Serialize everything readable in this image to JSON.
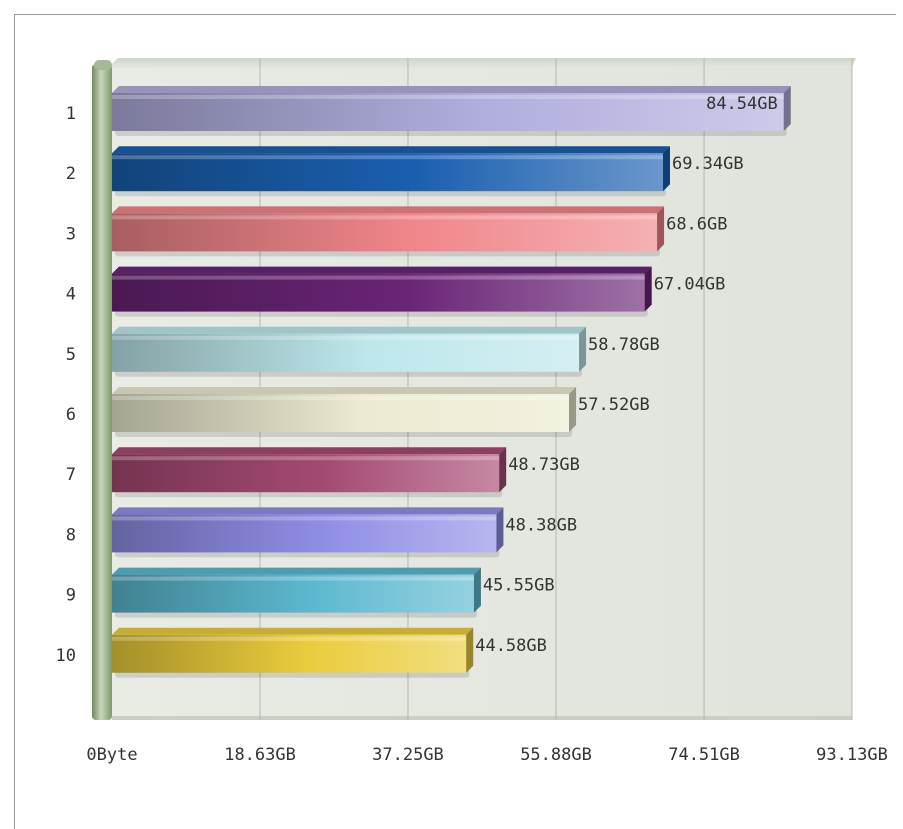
{
  "chart_data": {
    "type": "bar",
    "orientation": "horizontal",
    "title": "",
    "xlabel": "",
    "ylabel": "",
    "xlim": [
      0,
      93.13
    ],
    "x_tick_values": [
      0,
      18.63,
      37.25,
      55.88,
      74.51,
      93.13
    ],
    "x_tick_labels": [
      "0Byte",
      "18.63GB",
      "37.25GB",
      "55.88GB",
      "74.51GB",
      "93.13GB"
    ],
    "grid": "vertical",
    "legend": "none",
    "categories": [
      "1",
      "2",
      "3",
      "4",
      "5",
      "6",
      "7",
      "8",
      "9",
      "10"
    ],
    "values": [
      84.54,
      69.34,
      68.6,
      67.04,
      58.78,
      57.52,
      48.73,
      48.38,
      45.55,
      44.58
    ],
    "value_labels": [
      "84.54GB",
      "69.34GB",
      "68.6GB",
      "67.04GB",
      "58.78GB",
      "57.52GB",
      "48.73GB",
      "48.38GB",
      "45.55GB",
      "44.58GB"
    ],
    "colors": [
      "#b0aedd",
      "#1a5fb0",
      "#f0868a",
      "#6a2476",
      "#bde7ec",
      "#ecead0",
      "#a54a72",
      "#8f8ee6",
      "#5cb8cf",
      "#eacc3c"
    ]
  }
}
